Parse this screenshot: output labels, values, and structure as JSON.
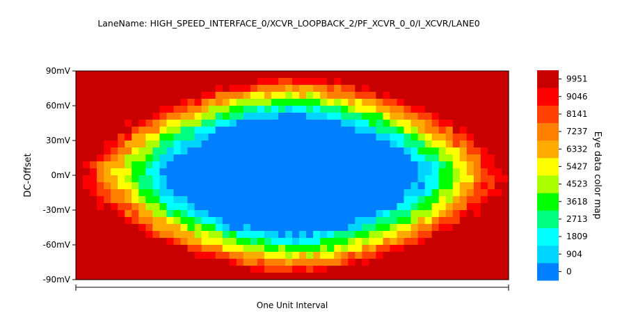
{
  "chart_data": {
    "type": "heatmap",
    "title": "LaneName: HIGH_SPEED_INTERFACE_0/XCVR_LOOPBACK_2/PF_XCVR_0_0/I_XCVR/LANE0",
    "xlabel": "One Unit Interval",
    "ylabel": "DC-Offset",
    "colorbar_label": "Eye data color map",
    "ylim": [
      -90,
      90
    ],
    "y_ticks": [
      "90mV",
      "60mV",
      "30mV",
      "0mV",
      "-30mV",
      "-60mV",
      "-90mV"
    ],
    "y_tick_values": [
      90,
      60,
      30,
      0,
      -30,
      -60,
      -90
    ],
    "x_ticks": [
      "",
      ""
    ],
    "colorbar_levels": [
      0,
      904,
      1809,
      2713,
      3618,
      4523,
      5427,
      6332,
      7237,
      8141,
      9046,
      9951
    ],
    "colorbar_labels": [
      "0",
      "904",
      "1809",
      "2713",
      "3618",
      "4523",
      "5427",
      "6332",
      "7237",
      "8141",
      "9046",
      "9951"
    ],
    "colors": [
      "#0080ff",
      "#00d4ff",
      "#00ffff",
      "#00ff80",
      "#00ff00",
      "#aaff00",
      "#ffff00",
      "#ffaa00",
      "#ff8000",
      "#ff4000",
      "#ff0000",
      "#c80000"
    ],
    "eye_opening": {
      "inner_half_width_ui": 0.37,
      "inner_half_height_mv": 65,
      "center_ui": 0.5,
      "center_mv": 0
    }
  }
}
